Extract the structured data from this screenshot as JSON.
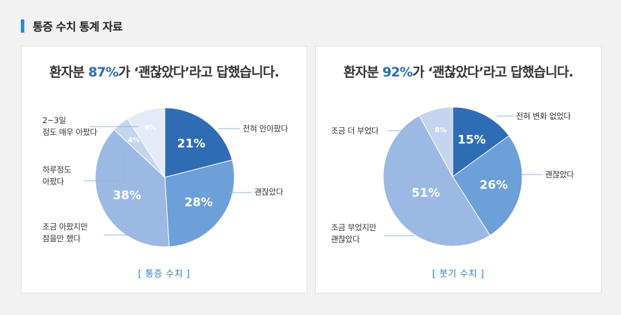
{
  "section": {
    "title": "통증 수치 통계 자료"
  },
  "colors": {
    "accent": "#1f8fd6",
    "highlight": "#2e6db4",
    "caption": "#2f80c8",
    "leader": "#8fb5dd"
  },
  "panels": [
    {
      "headline": {
        "before": "환자분 ",
        "pct": "87%",
        "after": "가 ‘괜찮았다’라고 답했습니다."
      },
      "caption": "[ 통증 수치 ]"
    },
    {
      "headline": {
        "before": "환자분 ",
        "pct": "92%",
        "after": "가 ‘괜찮았다’라고 답했습니다."
      },
      "caption": "[ 붓기 수치 ]"
    }
  ],
  "chart_data": [
    {
      "type": "pie",
      "title": "[ 통증 수치 ]",
      "slices": [
        {
          "label": "전혀 안아팠다",
          "value": 21,
          "display": "21%",
          "color": "#2e6db4"
        },
        {
          "label": "괜찮았다",
          "value": 28,
          "display": "28%",
          "color": "#6d9fd8"
        },
        {
          "label": "조금 아팠지만 참을만 했다",
          "value": 38,
          "display": "38%",
          "color": "#9bb9e3"
        },
        {
          "label": "하루정도 아팠다",
          "value": 4,
          "display": "4%",
          "color": "#c5d5ef"
        },
        {
          "label": "2~3일 정도 매우 아팠다",
          "value": 9,
          "display": "9%",
          "color": "#e4ebf7"
        }
      ]
    },
    {
      "type": "pie",
      "title": "[ 붓기 수치 ]",
      "slices": [
        {
          "label": "전혀 변화 없었다",
          "value": 15,
          "display": "15%",
          "color": "#2e6db4"
        },
        {
          "label": "괜찮았다",
          "value": 26,
          "display": "26%",
          "color": "#6d9fd8"
        },
        {
          "label": "조금 부었지만 괜찮았다",
          "value": 51,
          "display": "51%",
          "color": "#9bb9e3"
        },
        {
          "label": "조금 더 부었다",
          "value": 8,
          "display": "8%",
          "color": "#c5d5ef"
        }
      ]
    }
  ]
}
